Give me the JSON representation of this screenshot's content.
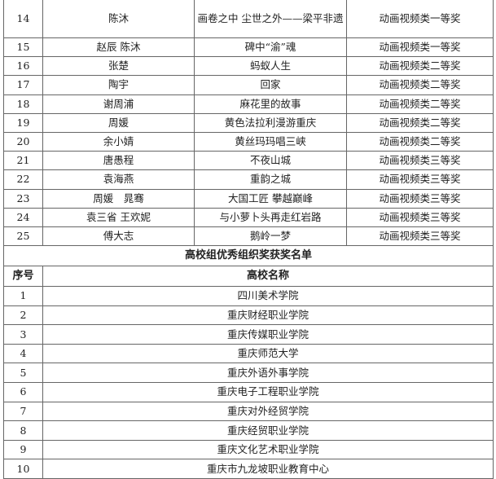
{
  "awards": [
    {
      "no": "14",
      "author": "陈沐",
      "title": "画卷之中 尘世之外——梁平非遗",
      "award": "动画视频类一等奖"
    },
    {
      "no": "15",
      "author": "赵辰 陈沐",
      "title": "碑中“渝”魂",
      "award": "动画视频类一等奖"
    },
    {
      "no": "16",
      "author": "张楚",
      "title": "蚂蚁人生",
      "award": "动画视频类二等奖"
    },
    {
      "no": "17",
      "author": "陶宇",
      "title": "回家",
      "award": "动画视频类二等奖"
    },
    {
      "no": "18",
      "author": "谢周浦",
      "title": "麻花里的故事",
      "award": "动画视频类二等奖"
    },
    {
      "no": "19",
      "author": "周媛",
      "title": "黄色法拉利漫游重庆",
      "award": "动画视频类二等奖"
    },
    {
      "no": "20",
      "author": "余小婧",
      "title": "黄丝玛玛唱三峡",
      "award": "动画视频类二等奖"
    },
    {
      "no": "21",
      "author": "唐愚程",
      "title": "不夜山城",
      "award": "动画视频类三等奖"
    },
    {
      "no": "22",
      "author": "袁海燕",
      "title": "重韵之城",
      "award": "动画视频类三等奖"
    },
    {
      "no": "23",
      "author": "周媛　晁骞",
      "title": "大国工匠 攀越巅峰",
      "award": "动画视频类三等奖"
    },
    {
      "no": "24",
      "author": "袁三省 王欢妮",
      "title": "与小萝卜头再走红岩路",
      "award": "动画视频类三等奖"
    },
    {
      "no": "25",
      "author": "傅大志",
      "title": "鹅岭一梦",
      "award": "动画视频类三等奖"
    }
  ],
  "section_title": "高校组优秀组织奖获奖名单",
  "header": {
    "no": "序号",
    "name": "高校名称"
  },
  "schools": [
    {
      "no": "1",
      "name": "四川美术学院"
    },
    {
      "no": "2",
      "name": "重庆财经职业学院"
    },
    {
      "no": "3",
      "name": "重庆传媒职业学院"
    },
    {
      "no": "4",
      "name": "重庆师范大学"
    },
    {
      "no": "5",
      "name": "重庆外语外事学院"
    },
    {
      "no": "6",
      "name": "重庆电子工程职业学院"
    },
    {
      "no": "7",
      "name": "重庆对外经贸学院"
    },
    {
      "no": "8",
      "name": "重庆经贸职业学院"
    },
    {
      "no": "9",
      "name": "重庆文化艺术职业学院"
    },
    {
      "no": "10",
      "name": "重庆市九龙坡职业教育中心"
    }
  ]
}
